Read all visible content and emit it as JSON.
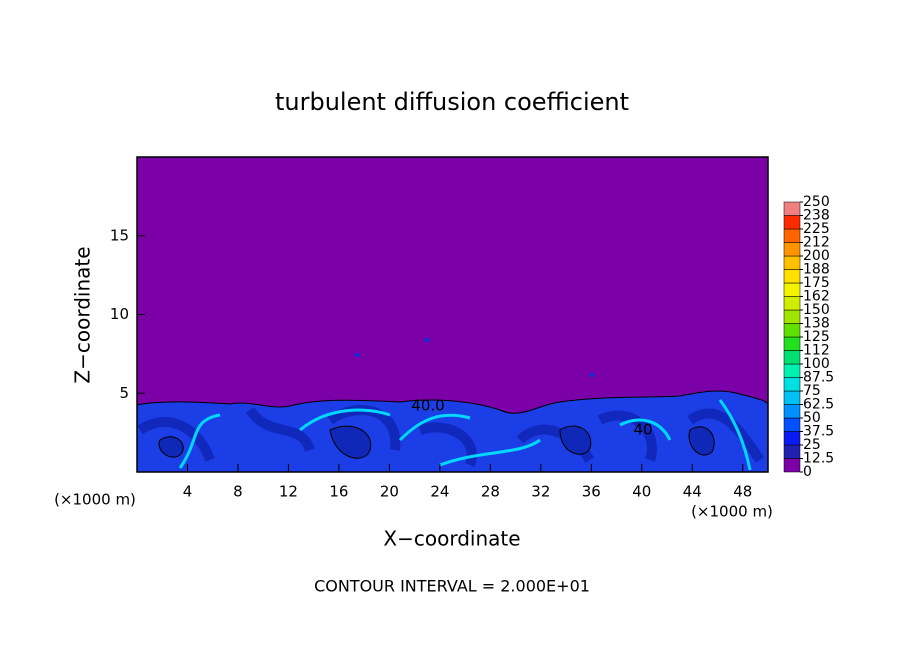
{
  "chart_data": {
    "type": "field",
    "title": "turbulent diffusion coefficient",
    "x_label": "X−coordinate",
    "y_label": "Z−coordinate",
    "x_unit": "(×1000 m)",
    "footnote": "CONTOUR INTERVAL = 2.000E+01",
    "annotations": [
      "40.0",
      "40"
    ],
    "xlim": [
      0,
      50
    ],
    "xticks": [
      4,
      8,
      12,
      16,
      20,
      24,
      28,
      32,
      36,
      40,
      44,
      48
    ],
    "ylim": [
      0,
      20
    ],
    "yticks": [
      5,
      10,
      15
    ],
    "colorbar": {
      "levels": [
        0,
        12.5,
        25,
        37.5,
        50,
        62.5,
        75,
        87.5,
        100,
        {
          "value": 112.5,
          "label": "112"
        },
        125,
        {
          "value": 137.5,
          "label": "138"
        },
        150,
        {
          "value": 162.5,
          "label": "162"
        },
        175,
        {
          "value": 187.5,
          "label": "188"
        },
        200,
        {
          "value": 212.5,
          "label": "212"
        },
        225,
        {
          "value": 237.5,
          "label": "238"
        },
        250
      ],
      "colors": [
        "#7b00a8",
        "#2020b0",
        "#0a1af0",
        "#0050ff",
        "#0090ff",
        "#00c0f4",
        "#00e0e0",
        "#00f0b0",
        "#00e070",
        "#20e020",
        "#60e000",
        "#a0e400",
        "#d0ec00",
        "#f4f400",
        "#ffe000",
        "#ffc000",
        "#ff9400",
        "#ff6400",
        "#ff2a00",
        "#f08080"
      ]
    }
  }
}
